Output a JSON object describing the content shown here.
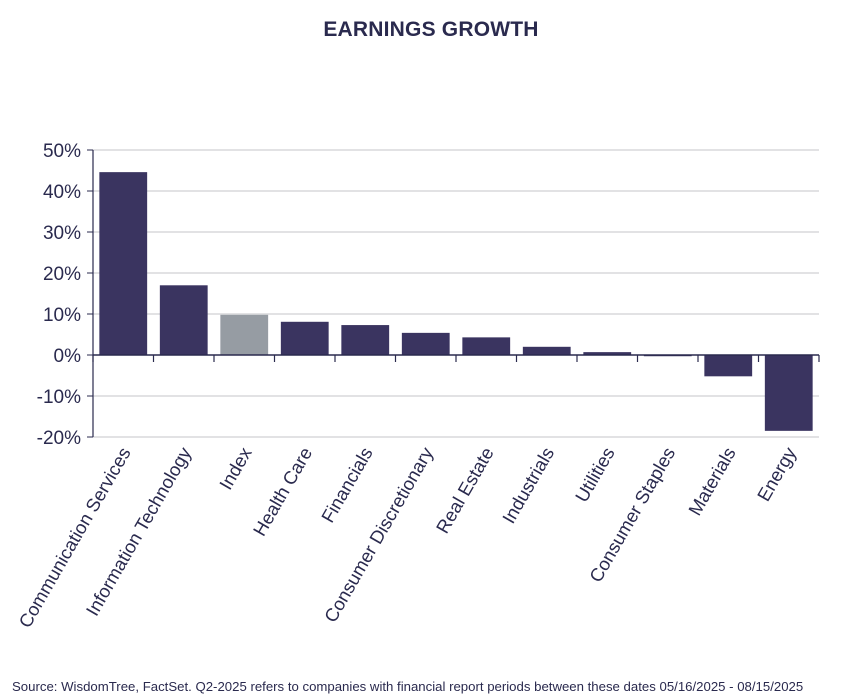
{
  "chart_data": {
    "type": "bar",
    "title": "EARNINGS GROWTH",
    "xlabel": "",
    "ylabel": "",
    "ylim": [
      -20,
      50
    ],
    "yticks": [
      50,
      40,
      30,
      20,
      10,
      0,
      -10,
      -20
    ],
    "ytick_labels": [
      "50%",
      "40%",
      "30%",
      "20%",
      "10%",
      "0%",
      "-10%",
      "-20%"
    ],
    "grid": true,
    "categories": [
      "Communication Services",
      "Information Technology",
      "Index",
      "Health Care",
      "Financials",
      "Consumer Discretionary",
      "Real Estate",
      "Industrials",
      "Utilities",
      "Consumer Staples",
      "Materials",
      "Energy"
    ],
    "values": [
      44.6,
      17.0,
      9.8,
      8.1,
      7.3,
      5.4,
      4.3,
      2.0,
      0.7,
      -0.3,
      -5.2,
      -18.5
    ],
    "bar_color": "#3a3460",
    "highlight_category": "Index",
    "highlight_color": "#969ca3"
  },
  "footer": {
    "source": "Source: WisdomTree, FactSet. Q2-2025 refers to companies with financial report periods between these dates 05/16/2025 - 08/15/2025"
  }
}
